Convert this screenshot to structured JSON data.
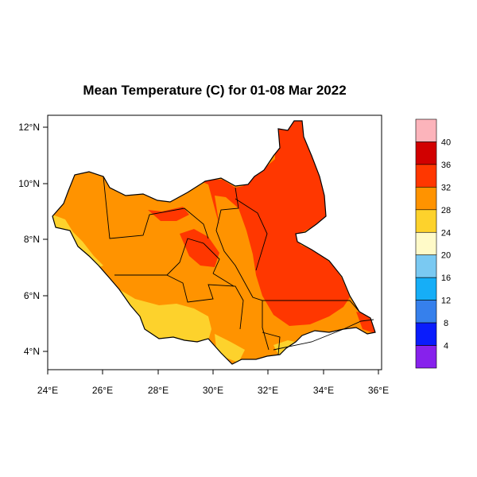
{
  "map": {
    "title": "Mean Temperature (C) for 01-08 Mar 2022",
    "x_ticks": [
      "24°E",
      "26°E",
      "28°E",
      "30°E",
      "32°E",
      "34°E",
      "36°E"
    ],
    "y_ticks": [
      "12°N",
      "10°N",
      "8°N",
      "6°N",
      "4°N"
    ],
    "legend": {
      "labels": [
        "40",
        "36",
        "32",
        "28",
        "24",
        "20",
        "16",
        "12",
        "8",
        "4"
      ],
      "colors": [
        "#fcb4bb",
        "#d10000",
        "#ff3700",
        "#ff9300",
        "#fdd22c",
        "#fffac8",
        "#7ac9f2",
        "#16aef7",
        "#3680ec",
        "#0a1cfc",
        "#8721ec"
      ]
    },
    "colors": {
      "orange": "#ff9300",
      "red_orange": "#ff3700",
      "yellow": "#fdd22c",
      "light_yellow": "#fffac8"
    }
  }
}
